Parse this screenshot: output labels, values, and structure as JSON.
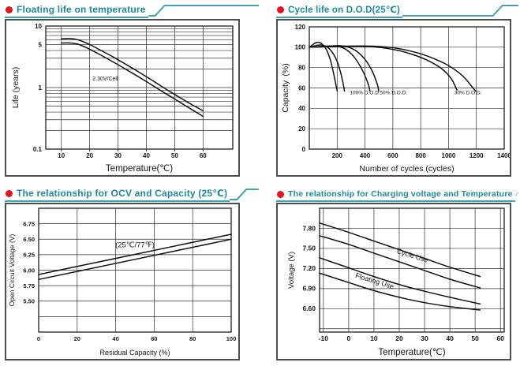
{
  "accent": {
    "title_color": "#1b8a9e",
    "bullet_color": "#e8121c",
    "line_color": "#3fa3b4",
    "ink_color": "#141414"
  },
  "panels": [
    {
      "title": "Floating life on temperature"
    },
    {
      "title": "Cycle life on D.O.D(25℃)"
    },
    {
      "title": "The relationship  for OCV and Capacity (25℃)"
    },
    {
      "title": "The relationship for Charging voltage and Temperature"
    }
  ],
  "chart_data": [
    {
      "type": "line",
      "title": "Floating life on temperature",
      "xlabel": "Temperature(℃)",
      "ylabel": "Life (years)",
      "legend": "none",
      "grid": "on",
      "x": {
        "min": 4.5,
        "max": 70.5,
        "grid": [
          10,
          20,
          30,
          40,
          50,
          60
        ],
        "ticks": [
          {
            "v": 10,
            "label": "10"
          },
          {
            "v": 20,
            "label": "20"
          },
          {
            "v": 30,
            "label": "30"
          },
          {
            "v": 40,
            "label": "40"
          },
          {
            "v": 50,
            "label": "50"
          },
          {
            "v": 60,
            "label": "60"
          }
        ]
      },
      "y": {
        "min": 0.1,
        "max": 10,
        "scale": "log",
        "grid": [
          0.2,
          0.3,
          0.4,
          0.5,
          0.6,
          0.7,
          0.8,
          0.9,
          1,
          2,
          3,
          4,
          5,
          6,
          7,
          8,
          9
        ],
        "ticks": [
          {
            "v": 10,
            "label": "10"
          },
          {
            "v": 5,
            "label": "5"
          },
          {
            "v": 1,
            "label": "1"
          },
          {
            "v": 0.1,
            "label": "0.1"
          }
        ]
      },
      "annotations": [
        {
          "text": "2.30V/Cell",
          "x": 25.5,
          "y": 1.31,
          "fs": 7
        }
      ],
      "series": [
        {
          "name": "float-life-upper",
          "points": [
            [
              10,
              6.2
            ],
            [
              13,
              6.25
            ],
            [
              16,
              5.95
            ],
            [
              20,
              5.0
            ],
            [
              24,
              4.0
            ],
            [
              28,
              3.2
            ],
            [
              32,
              2.5
            ],
            [
              36,
              1.95
            ],
            [
              40,
              1.5
            ],
            [
              44,
              1.15
            ],
            [
              48,
              0.88
            ],
            [
              52,
              0.68
            ],
            [
              56,
              0.53
            ],
            [
              60,
              0.42
            ]
          ]
        },
        {
          "name": "float-life-lower",
          "points": [
            [
              10,
              5.3
            ],
            [
              13,
              5.3
            ],
            [
              16,
              5.05
            ],
            [
              20,
              4.2
            ],
            [
              24,
              3.35
            ],
            [
              28,
              2.65
            ],
            [
              32,
              2.08
            ],
            [
              36,
              1.62
            ],
            [
              40,
              1.25
            ],
            [
              44,
              0.96
            ],
            [
              48,
              0.74
            ],
            [
              52,
              0.57
            ],
            [
              56,
              0.44
            ],
            [
              60,
              0.34
            ]
          ]
        }
      ]
    },
    {
      "type": "line",
      "title": "Cycle life on D.O.D(25℃)",
      "xlabel": "Number of cycles (cycles)",
      "ylabel": "Capacity (%)",
      "legend": "inline-annotations",
      "grid": "on",
      "x": {
        "min": 0,
        "max": 1400,
        "grid": [
          200,
          400,
          600,
          800,
          1000,
          1200
        ],
        "ticks": [
          {
            "v": 200,
            "label": "200"
          },
          {
            "v": 400,
            "label": "400"
          },
          {
            "v": 600,
            "label": "600"
          },
          {
            "v": 800,
            "label": "800"
          },
          {
            "v": 1000,
            "label": "1000"
          },
          {
            "v": 1200,
            "label": "1200"
          },
          {
            "v": 1400,
            "label": "1400"
          }
        ]
      },
      "y": {
        "min": 0,
        "max": 120,
        "scale": "linear",
        "grid": [
          20,
          40,
          60,
          80,
          100
        ],
        "ticks": [
          {
            "v": 0,
            "label": "0"
          },
          {
            "v": 20,
            "label": "20"
          },
          {
            "v": 40,
            "label": "40"
          },
          {
            "v": 60,
            "label": "60"
          },
          {
            "v": 80,
            "label": "80"
          },
          {
            "v": 100,
            "label": "100"
          },
          {
            "v": 120,
            "label": "120"
          }
        ]
      },
      "annotations": [
        {
          "text": "100% D.O.D.",
          "x": 400,
          "y": 54,
          "fs": 6.5
        },
        {
          "text": "50% D.O.D.",
          "x": 605,
          "y": 54,
          "fs": 6.5
        },
        {
          "text": "30% D.O.D.",
          "x": 1140,
          "y": 54,
          "fs": 6.5
        }
      ],
      "series": [
        {
          "name": "dod-100-inner",
          "points": [
            [
              0,
              100
            ],
            [
              25,
              102.5
            ],
            [
              50,
              104.5
            ],
            [
              75,
              104.5
            ],
            [
              100,
              102
            ],
            [
              125,
              97
            ],
            [
              150,
              88
            ],
            [
              170,
              77
            ],
            [
              190,
              64
            ],
            [
              200,
              57
            ]
          ]
        },
        {
          "name": "dod-100-outer",
          "points": [
            [
              0,
              100
            ],
            [
              30,
              101
            ],
            [
              60,
              102
            ],
            [
              95,
              102
            ],
            [
              130,
              100
            ],
            [
              165,
              95
            ],
            [
              200,
              86
            ],
            [
              225,
              75
            ],
            [
              245,
              63
            ],
            [
              252,
              57
            ]
          ]
        },
        {
          "name": "dod-50-inner",
          "points": [
            [
              0,
              100
            ],
            [
              60,
              100.5
            ],
            [
              120,
              101
            ],
            [
              180,
              101
            ],
            [
              240,
              99.5
            ],
            [
              290,
              95
            ],
            [
              340,
              87
            ],
            [
              390,
              75
            ],
            [
              425,
              63
            ],
            [
              435,
              57
            ]
          ]
        },
        {
          "name": "dod-50-outer",
          "points": [
            [
              0,
              100
            ],
            [
              70,
              100.5
            ],
            [
              140,
              101
            ],
            [
              210,
              101.5
            ],
            [
              280,
              100
            ],
            [
              340,
              96
            ],
            [
              400,
              88
            ],
            [
              450,
              77
            ],
            [
              490,
              63
            ],
            [
              498,
              57
            ]
          ]
        },
        {
          "name": "dod-30-inner",
          "points": [
            [
              0,
              100
            ],
            [
              150,
              100.5
            ],
            [
              300,
              101
            ],
            [
              450,
              100.5
            ],
            [
              550,
              99
            ],
            [
              650,
              96.5
            ],
            [
              750,
              92.5
            ],
            [
              850,
              87
            ],
            [
              950,
              79
            ],
            [
              1020,
              69
            ],
            [
              1060,
              58
            ]
          ]
        },
        {
          "name": "dod-30-outer",
          "points": [
            [
              0,
              100
            ],
            [
              150,
              100.5
            ],
            [
              300,
              101
            ],
            [
              450,
              101
            ],
            [
              600,
              99.5
            ],
            [
              700,
              97
            ],
            [
              800,
              93.5
            ],
            [
              900,
              88.5
            ],
            [
              1000,
              82
            ],
            [
              1100,
              72
            ],
            [
              1170,
              61
            ],
            [
              1195,
              57
            ]
          ]
        }
      ]
    },
    {
      "type": "line",
      "title": "The relationship  for OCV and Capacity (25℃)",
      "xlabel": "Residual Capacity (%)",
      "ylabel": "Open Circuit Voltage (V)",
      "legend": "none",
      "grid": "on",
      "x": {
        "min": 0,
        "max": 100,
        "grid": [
          20,
          40,
          60,
          80
        ],
        "ticks": [
          {
            "v": 0,
            "label": "0"
          },
          {
            "v": 20,
            "label": "20"
          },
          {
            "v": 40,
            "label": "40"
          },
          {
            "v": 60,
            "label": "60"
          },
          {
            "v": 80,
            "label": "80"
          },
          {
            "v": 100,
            "label": "100"
          }
        ]
      },
      "y": {
        "min": 5.0,
        "max": 7.0,
        "scale": "linear",
        "grid": [
          5.25,
          5.5,
          5.75,
          6.0,
          6.25,
          6.5,
          6.75
        ],
        "ticks": [
          {
            "v": 6.75,
            "label": "6.75"
          },
          {
            "v": 6.5,
            "label": "6.50"
          },
          {
            "v": 6.25,
            "label": "6.25"
          },
          {
            "v": 6.0,
            "label": "6.00"
          },
          {
            "v": 5.75,
            "label": "5.75"
          },
          {
            "v": 5.5,
            "label": "5.50"
          }
        ]
      },
      "annotations": [
        {
          "text": "(25℃/77℉)",
          "x": 50,
          "y": 6.37,
          "fs": 9.5
        }
      ],
      "series": [
        {
          "name": "ocv-upper",
          "points": [
            [
              0,
              5.93
            ],
            [
              50,
              6.255
            ],
            [
              100,
              6.58
            ]
          ]
        },
        {
          "name": "ocv-lower",
          "points": [
            [
              0,
              5.85
            ],
            [
              50,
              6.175
            ],
            [
              100,
              6.5
            ]
          ]
        }
      ]
    },
    {
      "type": "line",
      "title": "The relationship for Charging voltage and Temperature",
      "xlabel": "Temperature(℃)",
      "ylabel": "Voltage (V)",
      "legend": "inline-annotations",
      "grid": "on",
      "x": {
        "min": -11.5,
        "max": 61.5,
        "grid": [
          -10,
          0,
          10,
          20,
          30,
          40,
          50,
          60
        ],
        "ticks": [
          {
            "v": -10,
            "label": "-10"
          },
          {
            "v": 0,
            "label": "0"
          },
          {
            "v": 10,
            "label": "10"
          },
          {
            "v": 20,
            "label": "20"
          },
          {
            "v": 30,
            "label": "30"
          },
          {
            "v": 40,
            "label": "40"
          },
          {
            "v": 50,
            "label": "50"
          },
          {
            "v": 60,
            "label": "60"
          }
        ]
      },
      "y": {
        "min": 6.25,
        "max": 8.1,
        "scale": "linear",
        "grid": [
          6.3,
          6.6,
          6.9,
          7.2,
          7.5,
          7.8
        ],
        "ticks": [
          {
            "v": 7.8,
            "label": "7.80"
          },
          {
            "v": 7.5,
            "label": "7.50"
          },
          {
            "v": 7.2,
            "label": "7.20"
          },
          {
            "v": 6.9,
            "label": "6.90"
          },
          {
            "v": 6.6,
            "label": "6.60"
          }
        ]
      },
      "annotations": [
        {
          "text": "Cycle Use",
          "x": 25,
          "y": 7.36,
          "fs": 9,
          "rot": 17
        },
        {
          "text": "Floating Use",
          "x": 10,
          "y": 6.98,
          "fs": 9,
          "rot": 17
        }
      ],
      "series": [
        {
          "name": "cycle-use-upper",
          "points": [
            [
              -11.5,
              7.88
            ],
            [
              0,
              7.74
            ],
            [
              10,
              7.61
            ],
            [
              20,
              7.48
            ],
            [
              30,
              7.35
            ],
            [
              40,
              7.22
            ],
            [
              52,
              7.08
            ]
          ]
        },
        {
          "name": "cycle-use-lower",
          "points": [
            [
              -11.5,
              7.69
            ],
            [
              0,
              7.56
            ],
            [
              10,
              7.43
            ],
            [
              20,
              7.3
            ],
            [
              30,
              7.17
            ],
            [
              40,
              7.04
            ],
            [
              52,
              6.91
            ]
          ]
        },
        {
          "name": "floating-use-upper",
          "points": [
            [
              -11.5,
              7.36
            ],
            [
              0,
              7.21
            ],
            [
              10,
              7.08
            ],
            [
              20,
              6.96
            ],
            [
              30,
              6.86
            ],
            [
              40,
              6.77
            ],
            [
              52,
              6.67
            ]
          ]
        },
        {
          "name": "floating-use-lower",
          "points": [
            [
              -11.5,
              7.13
            ],
            [
              0,
              6.99
            ],
            [
              10,
              6.87
            ],
            [
              20,
              6.77
            ],
            [
              30,
              6.69
            ],
            [
              40,
              6.63
            ],
            [
              52,
              6.58
            ]
          ]
        }
      ]
    }
  ]
}
